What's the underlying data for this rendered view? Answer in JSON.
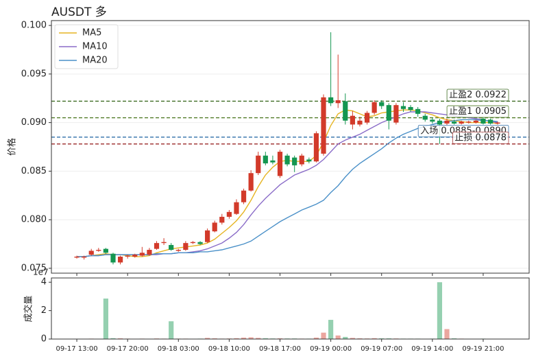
{
  "chart_data": {
    "type": "candlestick",
    "title": "AUSDT  多",
    "ylabel": "价格",
    "x": [
      "09-17 13:00",
      "09-17 14:00",
      "09-17 15:00",
      "09-17 16:00",
      "09-17 17:00",
      "09-17 18:00",
      "09-17 19:00",
      "09-17 20:00",
      "09-17 21:00",
      "09-17 22:00",
      "09-17 23:00",
      "09-18 00:00",
      "09-18 01:00",
      "09-18 02:00",
      "09-18 03:00",
      "09-18 04:00",
      "09-18 05:00",
      "09-18 06:00",
      "09-18 07:00",
      "09-18 08:00",
      "09-18 09:00",
      "09-18 10:00",
      "09-18 11:00",
      "09-18 12:00",
      "09-18 13:00",
      "09-18 14:00",
      "09-18 15:00",
      "09-18 16:00",
      "09-18 17:00",
      "09-18 18:00",
      "09-18 19:00",
      "09-18 20:00",
      "09-18 21:00",
      "09-18 22:00",
      "09-18 23:00",
      "09-19 00:00",
      "09-19 01:00",
      "09-19 02:00",
      "09-19 03:00",
      "09-19 04:00",
      "09-19 05:00",
      "09-19 06:00",
      "09-19 07:00",
      "09-19 08:00",
      "09-19 09:00",
      "09-19 10:00",
      "09-19 11:00",
      "09-19 12:00",
      "09-19 13:00",
      "09-19 14:00",
      "09-19 15:00",
      "09-19 16:00",
      "09-19 17:00",
      "09-19 18:00",
      "09-19 19:00",
      "09-19 20:00",
      "09-19 21:00",
      "09-19 22:00",
      "09-19 23:00"
    ],
    "open": [
      0.0761,
      0.0761,
      0.0764,
      0.0768,
      0.077,
      0.0765,
      0.0756,
      0.0762,
      0.0762,
      0.0763,
      0.0764,
      0.077,
      0.0776,
      0.0774,
      0.0768,
      0.0769,
      0.0776,
      0.0777,
      0.0777,
      0.0788,
      0.0797,
      0.0803,
      0.0806,
      0.0818,
      0.083,
      0.0848,
      0.0866,
      0.0861,
      0.0845,
      0.0866,
      0.0864,
      0.0857,
      0.0862,
      0.086,
      0.0868,
      0.0926,
      0.092,
      0.0922,
      0.0898,
      0.0898,
      0.09,
      0.091,
      0.0921,
      0.0918,
      0.09,
      0.0917,
      0.0916,
      0.0914,
      0.0907,
      0.0903,
      0.0902,
      0.0899,
      0.0901,
      0.0899,
      0.09,
      0.09,
      0.0904,
      0.0903,
      0.0899
    ],
    "high": [
      0.0763,
      0.0763,
      0.077,
      0.0771,
      0.0771,
      0.0766,
      0.0763,
      0.0764,
      0.0765,
      0.0772,
      0.0771,
      0.0778,
      0.0781,
      0.0776,
      0.077,
      0.0778,
      0.0778,
      0.0778,
      0.0791,
      0.0799,
      0.0806,
      0.081,
      0.0821,
      0.0832,
      0.0851,
      0.087,
      0.087,
      0.0866,
      0.0872,
      0.0868,
      0.0866,
      0.0868,
      0.0864,
      0.0891,
      0.0929,
      0.0993,
      0.097,
      0.093,
      0.0912,
      0.0906,
      0.0912,
      0.0923,
      0.0923,
      0.092,
      0.092,
      0.0921,
      0.0918,
      0.0916,
      0.0909,
      0.0905,
      0.0904,
      0.0904,
      0.0903,
      0.0902,
      0.0902,
      0.0903,
      0.0905,
      0.0904,
      0.0901
    ],
    "low": [
      0.076,
      0.0759,
      0.0763,
      0.0767,
      0.0765,
      0.0754,
      0.0754,
      0.076,
      0.0761,
      0.0762,
      0.0763,
      0.0769,
      0.0774,
      0.0768,
      0.0767,
      0.0768,
      0.0775,
      0.0774,
      0.0776,
      0.0787,
      0.0795,
      0.0801,
      0.0805,
      0.0816,
      0.0829,
      0.0846,
      0.0856,
      0.0857,
      0.0843,
      0.0855,
      0.0849,
      0.0855,
      0.0858,
      0.0859,
      0.0866,
      0.0917,
      0.0915,
      0.0898,
      0.0893,
      0.0896,
      0.0898,
      0.0908,
      0.0914,
      0.0893,
      0.0898,
      0.0911,
      0.0911,
      0.0906,
      0.0901,
      0.0899,
      0.0878,
      0.0897,
      0.0898,
      0.0898,
      0.0899,
      0.0899,
      0.0898,
      0.0898,
      0.0898
    ],
    "close": [
      0.0762,
      0.0762,
      0.0768,
      0.0769,
      0.0766,
      0.0756,
      0.0762,
      0.0763,
      0.0764,
      0.0766,
      0.0769,
      0.0776,
      0.0777,
      0.0769,
      0.0769,
      0.0776,
      0.0777,
      0.0775,
      0.0789,
      0.0797,
      0.0803,
      0.0808,
      0.0818,
      0.083,
      0.0848,
      0.0866,
      0.0858,
      0.0859,
      0.087,
      0.0857,
      0.0856,
      0.0866,
      0.086,
      0.0889,
      0.0926,
      0.092,
      0.0923,
      0.0902,
      0.0907,
      0.0902,
      0.091,
      0.0921,
      0.0917,
      0.0902,
      0.0918,
      0.0914,
      0.0913,
      0.0909,
      0.0903,
      0.0901,
      0.0898,
      0.0902,
      0.0899,
      0.0901,
      0.0901,
      0.0902,
      0.0899,
      0.0899,
      0.09
    ],
    "up_color": "#d23a2a",
    "down_color": "#149650",
    "ylim": [
      0.0745,
      0.1005
    ],
    "yticks": [
      0.075,
      {
        "value": 0.08,
        "label": "0.080"
      },
      0.085,
      {
        "value": 0.09,
        "label": "0.090"
      },
      0.095,
      {
        "value": 0.1,
        "label": "0.100"
      }
    ],
    "xlim": [
      "09-17 09:30",
      "09-20 03:20"
    ],
    "xticks": [
      "09-17 13:00",
      "09-17 20:00",
      "09-18 03:00",
      "09-18 10:00",
      "09-18 17:00",
      "09-19 00:00",
      "09-19 07:00",
      "09-19 14:00",
      "09-19 21:00"
    ],
    "grid": true,
    "legend": "upper left",
    "series": [
      {
        "name": "MA5",
        "color": "#e6b420",
        "values": [
          0.0762,
          0.0762,
          0.0763,
          0.0764,
          0.0765,
          0.0764,
          0.0764,
          0.0763,
          0.0762,
          0.0762,
          0.0763,
          0.0766,
          0.0768,
          0.077,
          0.0771,
          0.0772,
          0.0773,
          0.0774,
          0.0776,
          0.078,
          0.0786,
          0.0792,
          0.0799,
          0.0808,
          0.082,
          0.0834,
          0.0846,
          0.0854,
          0.086,
          0.0861,
          0.086,
          0.086,
          0.086,
          0.0866,
          0.088,
          0.0897,
          0.0909,
          0.0913,
          0.0912,
          0.0909,
          0.0906,
          0.0907,
          0.091,
          0.0911,
          0.0912,
          0.0913,
          0.0913,
          0.0912,
          0.091,
          0.0908,
          0.0905,
          0.0903,
          0.0902,
          0.0901,
          0.09,
          0.09,
          0.09,
          0.09,
          0.0899
        ]
      },
      {
        "name": "MA10",
        "color": "#8a6cc8",
        "values": [
          0.0762,
          0.0762,
          0.0763,
          0.0763,
          0.0764,
          0.0764,
          0.0764,
          0.0764,
          0.0764,
          0.0764,
          0.0764,
          0.0764,
          0.0765,
          0.0765,
          0.0766,
          0.0766,
          0.0767,
          0.0768,
          0.077,
          0.0773,
          0.0776,
          0.0781,
          0.0787,
          0.0795,
          0.0805,
          0.0814,
          0.0822,
          0.0829,
          0.0836,
          0.0841,
          0.0846,
          0.0849,
          0.0852,
          0.0856,
          0.0862,
          0.087,
          0.0878,
          0.0882,
          0.0885,
          0.0888,
          0.0892,
          0.0896,
          0.09,
          0.0903,
          0.0906,
          0.0909,
          0.0911,
          0.0911,
          0.0911,
          0.091,
          0.0909,
          0.0908,
          0.0907,
          0.0906,
          0.0905,
          0.0904,
          0.0903,
          0.0901,
          0.09
        ]
      },
      {
        "name": "MA20",
        "color": "#4a90c8",
        "values": [
          0.0762,
          0.0762,
          0.0763,
          0.0763,
          0.0764,
          0.0764,
          0.0764,
          0.0764,
          0.0764,
          0.0764,
          0.0764,
          0.0765,
          0.0765,
          0.0765,
          0.0766,
          0.0766,
          0.0766,
          0.0767,
          0.0767,
          0.0768,
          0.0769,
          0.0771,
          0.0773,
          0.0775,
          0.0778,
          0.0783,
          0.0788,
          0.0793,
          0.0798,
          0.0802,
          0.0806,
          0.081,
          0.0813,
          0.0816,
          0.082,
          0.0828,
          0.0835,
          0.0844,
          0.0852,
          0.0858,
          0.0863,
          0.0868,
          0.0873,
          0.0879,
          0.0884,
          0.0888,
          0.0891,
          0.0894,
          0.0896,
          0.0898,
          0.09,
          0.0901,
          0.0902,
          0.0903,
          0.0903,
          0.0903,
          0.0902,
          0.0902,
          0.0901
        ]
      }
    ],
    "levels": [
      {
        "label": "止盈2 0.0922",
        "value": 0.0922,
        "color": "#3d6b22"
      },
      {
        "label": "止盈1 0.0905",
        "value": 0.0905,
        "color": "#4f7a26"
      },
      {
        "label": "入场 0.0885-0.0890",
        "value": 0.0885,
        "color": "#2f6fa8"
      },
      {
        "label": "止损 0.0878",
        "value": 0.0878,
        "color": "#a33a3a"
      }
    ],
    "volume": {
      "type": "bar",
      "ylabel": "成交量",
      "offset_label": "1e7",
      "values": [
        0.02,
        0.02,
        0.03,
        0.02,
        2.85,
        0.06,
        0.05,
        0.03,
        0.02,
        0.03,
        0.02,
        0.04,
        0.03,
        1.25,
        0.03,
        0.03,
        0.02,
        0.03,
        0.08,
        0.05,
        0.03,
        0.04,
        0.06,
        0.1,
        0.12,
        0.08,
        0.06,
        0.04,
        0.05,
        0.04,
        0.04,
        0.03,
        0.03,
        0.1,
        0.45,
        1.35,
        0.25,
        0.15,
        0.08,
        0.05,
        0.04,
        0.06,
        0.05,
        0.05,
        0.04,
        0.03,
        0.03,
        0.03,
        0.02,
        0.03,
        4.0,
        0.7,
        0.05,
        0.03,
        0.02,
        0.02,
        0.03,
        0.02,
        0.02
      ],
      "ylim": [
        0,
        4.3
      ],
      "yticks": [
        0,
        2,
        4
      ]
    }
  }
}
